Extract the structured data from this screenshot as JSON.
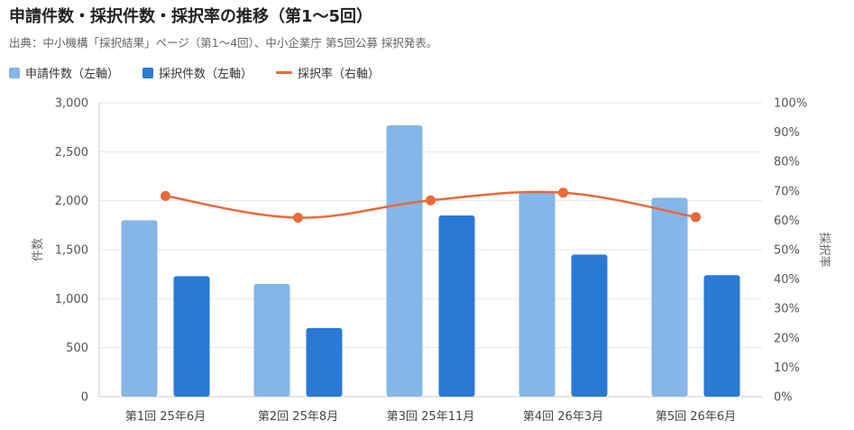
{
  "title": "申請件数・採択件数・採択率の推移（第1〜5回）",
  "subtitle": "出典：中小機構「採択結果」ページ（第1〜4回）、中小企業庁 第5回公募 採択発表。",
  "colors": {
    "applications": "#85B6E8",
    "adoptions": "#2A79D4",
    "rate": "#E8693A",
    "grid": "#E6E6E6",
    "axis": "#CCCCCC"
  },
  "chart_data": {
    "type": "bar",
    "categories": [
      "第1回 25年6月",
      "第2回 25年8月",
      "第3回 25年11月",
      "第4回 26年3月",
      "第5回 26年6月"
    ],
    "series": [
      {
        "name": "申請件数（左軸）",
        "type": "bar",
        "axis": "left",
        "values": [
          1800,
          1150,
          2770,
          2090,
          2030
        ]
      },
      {
        "name": "採択件数（左軸）",
        "type": "bar",
        "axis": "left",
        "values": [
          1230,
          700,
          1850,
          1450,
          1240
        ]
      },
      {
        "name": "採択率（右軸）",
        "type": "line",
        "axis": "right",
        "values": [
          68.3,
          60.9,
          66.8,
          69.4,
          61.1
        ]
      }
    ],
    "ylabel": "件数",
    "y2label": "採択率",
    "ylim": [
      0,
      3000
    ],
    "y2lim": [
      0,
      100
    ],
    "yticks": [
      "0",
      "500",
      "1,000",
      "1,500",
      "2,000",
      "2,500",
      "3,000"
    ],
    "y2ticks": [
      "0%",
      "10%",
      "20%",
      "30%",
      "40%",
      "50%",
      "60%",
      "70%",
      "80%",
      "90%",
      "100%"
    ],
    "grid": true,
    "legend": "top-left"
  }
}
